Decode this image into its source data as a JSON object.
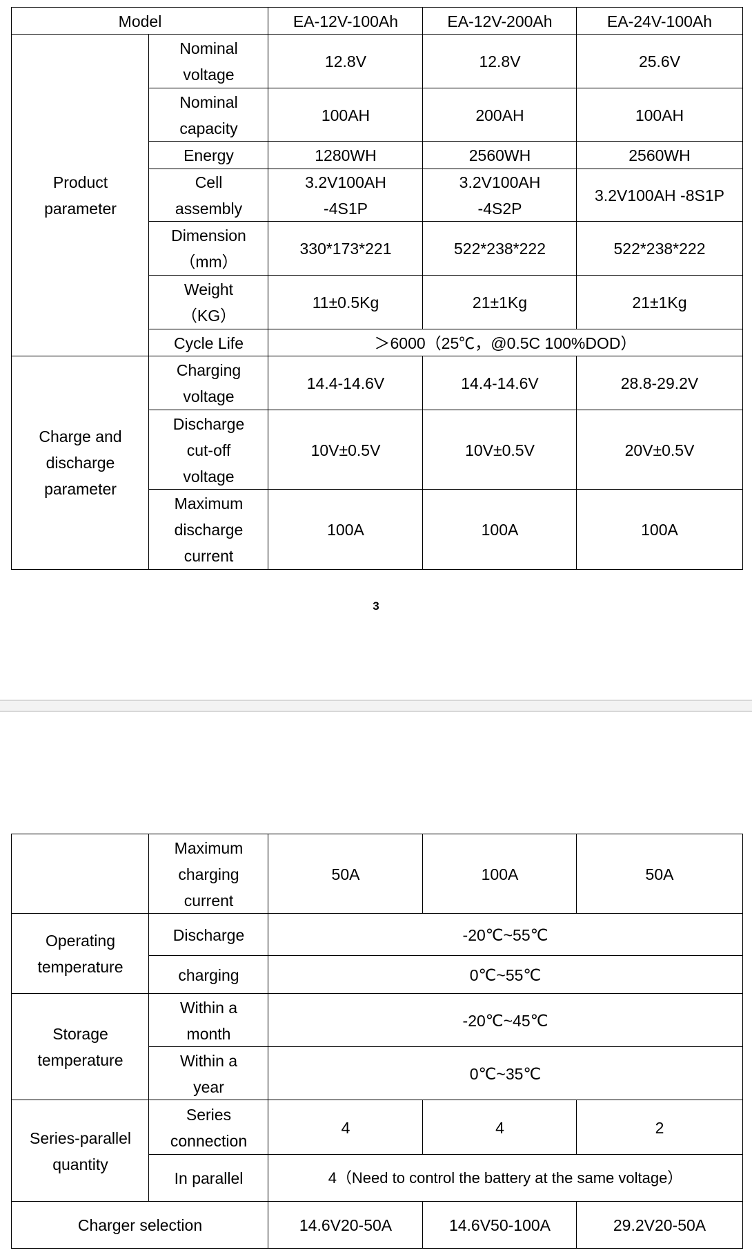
{
  "table1": {
    "header": {
      "model": "Model",
      "models": [
        "EA-12V-100Ah",
        "EA-12V-200Ah",
        "EA-24V-100Ah"
      ]
    },
    "product_parameter": {
      "group": "Product parameter",
      "rows": [
        {
          "label": "Nominal voltage",
          "values": [
            "12.8V",
            "12.8V",
            "25.6V"
          ]
        },
        {
          "label": "Nominal capacity",
          "values": [
            "100AH",
            "200AH",
            "100AH"
          ]
        },
        {
          "label": "Energy",
          "values": [
            "1280WH",
            "2560WH",
            "2560WH"
          ]
        },
        {
          "label": "Cell assembly",
          "values": [
            "3.2V100AH -4S1P",
            "3.2V100AH -4S2P",
            "3.2V100AH -8S1P"
          ]
        },
        {
          "label": "Dimension （mm）",
          "values": [
            "330*173*221",
            "522*238*222",
            "522*238*222"
          ]
        },
        {
          "label": "Weight （KG）",
          "values": [
            "11±0.5Kg",
            "21±1Kg",
            "21±1Kg"
          ]
        }
      ],
      "cycle_life": {
        "label": "Cycle Life",
        "value": "＞6000（25℃，@0.5C 100%DOD）"
      }
    },
    "charge_discharge": {
      "group": "Charge and discharge parameter",
      "rows": [
        {
          "label": "Charging voltage",
          "values": [
            "14.4-14.6V",
            "14.4-14.6V",
            "28.8-29.2V"
          ]
        },
        {
          "label": "Discharge cut-off voltage",
          "values": [
            "10V±0.5V",
            "10V±0.5V",
            "20V±0.5V"
          ]
        },
        {
          "label": "Maximum discharge current",
          "values": [
            "100A",
            "100A",
            "100A"
          ]
        }
      ]
    }
  },
  "page_number": "3",
  "table2": {
    "max_charging": {
      "label": "Maximum charging current",
      "values": [
        "50A",
        "100A",
        "50A"
      ]
    },
    "operating_temperature": {
      "group": "Operating temperature",
      "discharge_label": "Discharge",
      "discharge_value": "-20℃~55℃",
      "charging_label": "charging",
      "charging_value": "0℃~55℃"
    },
    "storage_temperature": {
      "group": "Storage temperature",
      "month_label": "Within a month",
      "month_value": "-20℃~45℃",
      "year_label": "Within a year",
      "year_value": "0℃~35℃"
    },
    "series_parallel": {
      "group": "Series-parallel quantity",
      "series_label": "Series connection",
      "series_values": [
        "4",
        "4",
        "2"
      ],
      "parallel_label": "In parallel",
      "parallel_value": "4（Need to control the battery at the same voltage）"
    },
    "charger": {
      "label": "Charger selection",
      "values": [
        "14.6V20-50A",
        "14.6V50-100A",
        "29.2V20-50A"
      ]
    }
  }
}
